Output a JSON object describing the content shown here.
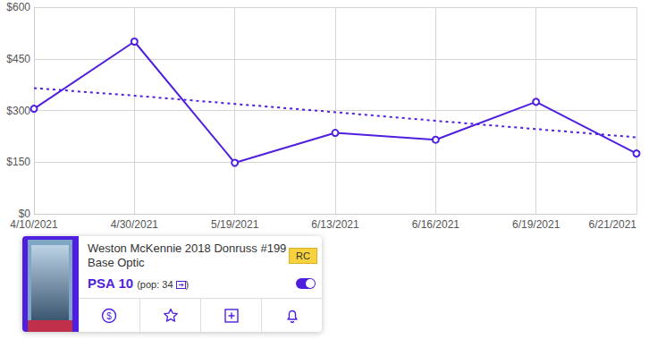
{
  "chart_data": {
    "type": "line",
    "categories": [
      "4/10/2021",
      "4/30/2021",
      "5/19/2021",
      "6/13/2021",
      "6/16/2021",
      "6/19/2021",
      "6/21/2021"
    ],
    "series": [
      {
        "color": "#4f1fe0",
        "marker": "circle",
        "line_style": "solid",
        "values": [
          305,
          500,
          148,
          235,
          215,
          325,
          175
        ]
      },
      {
        "color": "#4f1fe0",
        "marker": "none",
        "line_style": "dotted",
        "values": [
          365,
          343,
          319,
          295,
          270,
          246,
          222
        ]
      }
    ],
    "ylim": [
      0,
      600
    ],
    "yticks": [
      {
        "value": 0,
        "label": "$0"
      },
      {
        "value": 150,
        "label": "$150"
      },
      {
        "value": 300,
        "label": "$300"
      },
      {
        "value": 450,
        "label": "$450"
      },
      {
        "value": 600,
        "label": "$600"
      }
    ],
    "grid": true
  },
  "card": {
    "title_lines": [
      "Weston McKennie 2018 Donruss #199",
      "Base Optic"
    ],
    "badge": "RC",
    "grade": "PSA 10",
    "pop_prefix": "(pop:",
    "pop": 34,
    "pop_suffix": ")",
    "price_icon": "$"
  }
}
